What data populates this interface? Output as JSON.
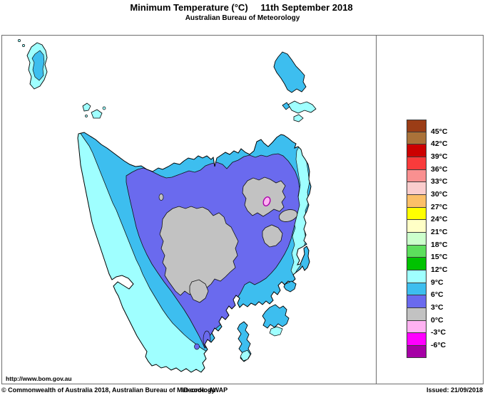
{
  "header": {
    "title_left": "Minimum Temperature (°C)",
    "title_right": "11th September 2018",
    "subtitle": "Australian Bureau of Meteorology"
  },
  "map": {
    "region": "Tasmania",
    "url_label": "http://www.bom.gov.au",
    "sea_color": "#ffffff",
    "coastline_color": "#000000",
    "cold_spot_ring_color": "#aa00aa",
    "bands_visible_on_map": [
      {
        "range_c": "9 to 12",
        "color_index": 12
      },
      {
        "range_c": "6 to 9",
        "color_index": 13
      },
      {
        "range_c": "3 to 6",
        "color_index": 14
      },
      {
        "range_c": "0 to 3",
        "color_index": 15
      },
      {
        "range_c": "-3 to 0",
        "color_index": 16
      }
    ]
  },
  "legend": {
    "labels": [
      "45°C",
      "42°C",
      "39°C",
      "36°C",
      "33°C",
      "30°C",
      "27°C",
      "24°C",
      "21°C",
      "18°C",
      "15°C",
      "12°C",
      "9°C",
      "6°C",
      "3°C",
      "0°C",
      "-3°C",
      "-6°C"
    ],
    "colors": [
      "#9b3d16",
      "#aa7239",
      "#cc0000",
      "#f93b3b",
      "#f99090",
      "#facdcd",
      "#fbbf68",
      "#ffff00",
      "#ffffc6",
      "#ccffcc",
      "#5cde5c",
      "#00c200",
      "#9fffff",
      "#3dbeef",
      "#6a6aee",
      "#c2c2c2",
      "#ffb2f2",
      "#ff00ff",
      "#a500a5"
    ]
  },
  "footer": {
    "copyright": "© Commonwealth of Australia 2018, Australian Bureau of Meteorology",
    "id_code": "ID code: AWAP",
    "issued": "Issued: 21/09/2018"
  },
  "frame": {
    "line_color": "#6e6e6e"
  }
}
